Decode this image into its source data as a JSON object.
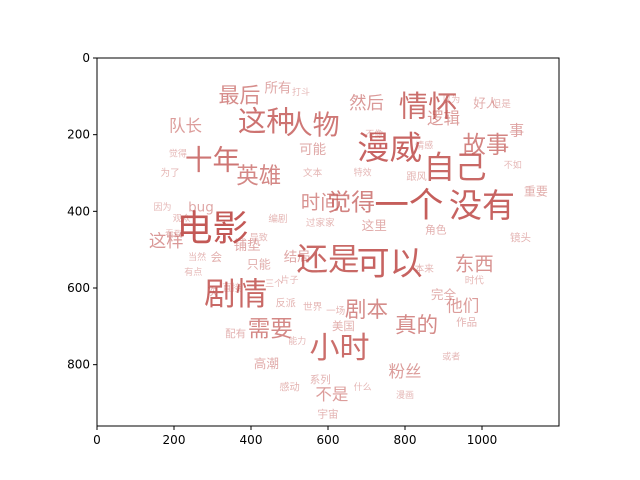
{
  "chart_data": {
    "type": "wordcloud",
    "title": "",
    "xlabel": "",
    "ylabel": "",
    "xlim": [
      0,
      1200
    ],
    "ylim": [
      960,
      0
    ],
    "x_ticks": [
      0,
      200,
      400,
      600,
      800,
      1000
    ],
    "y_ticks": [
      0,
      200,
      400,
      600,
      800
    ],
    "x_tick_labels": [
      "0",
      "200",
      "400",
      "600",
      "800",
      "1000"
    ],
    "y_tick_labels": [
      "0",
      "200",
      "400",
      "600",
      "800"
    ],
    "mask_shape": "heart",
    "word_color": "#c0504d",
    "words": [
      {
        "text": "电影",
        "x": 300,
        "y": 450,
        "weight": 1.0
      },
      {
        "text": "一个",
        "x": 810,
        "y": 390,
        "weight": 0.95
      },
      {
        "text": "没有",
        "x": 1000,
        "y": 390,
        "weight": 0.9
      },
      {
        "text": "可以",
        "x": 760,
        "y": 540,
        "weight": 0.9
      },
      {
        "text": "漫威",
        "x": 760,
        "y": 240,
        "weight": 0.88
      },
      {
        "text": "自己",
        "x": 930,
        "y": 290,
        "weight": 0.85
      },
      {
        "text": "还是",
        "x": 600,
        "y": 530,
        "weight": 0.85
      },
      {
        "text": "剧情",
        "x": 360,
        "y": 620,
        "weight": 0.85
      },
      {
        "text": "小时",
        "x": 630,
        "y": 760,
        "weight": 0.8
      },
      {
        "text": "情怀",
        "x": 860,
        "y": 130,
        "weight": 0.78
      },
      {
        "text": "这种",
        "x": 440,
        "y": 170,
        "weight": 0.75
      },
      {
        "text": "人物",
        "x": 560,
        "y": 180,
        "weight": 0.7
      },
      {
        "text": "十年",
        "x": 300,
        "y": 270,
        "weight": 0.72
      },
      {
        "text": "觉得",
        "x": 660,
        "y": 380,
        "weight": 0.6
      },
      {
        "text": "英雄",
        "x": 420,
        "y": 310,
        "weight": 0.55
      },
      {
        "text": "故事",
        "x": 1010,
        "y": 230,
        "weight": 0.58
      },
      {
        "text": "需要",
        "x": 450,
        "y": 710,
        "weight": 0.55
      },
      {
        "text": "最后",
        "x": 370,
        "y": 100,
        "weight": 0.5
      },
      {
        "text": "剧本",
        "x": 700,
        "y": 660,
        "weight": 0.52
      },
      {
        "text": "真的",
        "x": 830,
        "y": 700,
        "weight": 0.52
      },
      {
        "text": "时间",
        "x": 580,
        "y": 380,
        "weight": 0.45
      },
      {
        "text": "东西",
        "x": 980,
        "y": 540,
        "weight": 0.45
      },
      {
        "text": "队长",
        "x": 230,
        "y": 180,
        "weight": 0.35
      },
      {
        "text": "这样",
        "x": 180,
        "y": 480,
        "weight": 0.38
      },
      {
        "text": "然后",
        "x": 700,
        "y": 120,
        "weight": 0.38
      },
      {
        "text": "粉丝",
        "x": 800,
        "y": 820,
        "weight": 0.35
      },
      {
        "text": "逻辑",
        "x": 900,
        "y": 160,
        "weight": 0.35
      },
      {
        "text": "他们",
        "x": 950,
        "y": 650,
        "weight": 0.35
      },
      {
        "text": "不是",
        "x": 610,
        "y": 880,
        "weight": 0.35
      },
      {
        "text": "事",
        "x": 1090,
        "y": 190,
        "weight": 0.3
      },
      {
        "text": "所有",
        "x": 470,
        "y": 80,
        "weight": 0.25
      },
      {
        "text": "可能",
        "x": 560,
        "y": 240,
        "weight": 0.25
      },
      {
        "text": "好人",
        "x": 1010,
        "y": 120,
        "weight": 0.22
      },
      {
        "text": "bug",
        "x": 270,
        "y": 390,
        "weight": 0.25
      },
      {
        "text": "铺垫",
        "x": 390,
        "y": 490,
        "weight": 0.25
      },
      {
        "text": "只能",
        "x": 420,
        "y": 540,
        "weight": 0.2
      },
      {
        "text": "高潮",
        "x": 440,
        "y": 800,
        "weight": 0.22
      },
      {
        "text": "结局",
        "x": 520,
        "y": 520,
        "weight": 0.25
      },
      {
        "text": "完全",
        "x": 900,
        "y": 620,
        "weight": 0.22
      },
      {
        "text": "这里",
        "x": 720,
        "y": 440,
        "weight": 0.22
      },
      {
        "text": "美国",
        "x": 640,
        "y": 700,
        "weight": 0.18
      },
      {
        "text": "系列",
        "x": 580,
        "y": 840,
        "weight": 0.15
      },
      {
        "text": "宇宙",
        "x": 600,
        "y": 930,
        "weight": 0.15
      },
      {
        "text": "作品",
        "x": 960,
        "y": 690,
        "weight": 0.15
      },
      {
        "text": "配有",
        "x": 360,
        "y": 720,
        "weight": 0.15
      },
      {
        "text": "感动",
        "x": 500,
        "y": 860,
        "weight": 0.14
      },
      {
        "text": "角色",
        "x": 880,
        "y": 450,
        "weight": 0.16
      },
      {
        "text": "重要",
        "x": 1140,
        "y": 350,
        "weight": 0.2
      },
      {
        "text": "镜头",
        "x": 1100,
        "y": 470,
        "weight": 0.15
      },
      {
        "text": "文本",
        "x": 560,
        "y": 300,
        "weight": 0.12
      },
      {
        "text": "过家家",
        "x": 580,
        "y": 430,
        "weight": 0.12
      },
      {
        "text": "跟风",
        "x": 830,
        "y": 310,
        "weight": 0.14
      },
      {
        "text": "会",
        "x": 310,
        "y": 520,
        "weight": 0.18
      },
      {
        "text": "次",
        "x": 300,
        "y": 610,
        "weight": 0.15
      },
      {
        "text": "什么",
        "x": 690,
        "y": 860,
        "weight": 0.1
      },
      {
        "text": "导致",
        "x": 420,
        "y": 470,
        "weight": 0.1
      },
      {
        "text": "编剧",
        "x": 470,
        "y": 420,
        "weight": 0.12
      },
      {
        "text": "直接",
        "x": 350,
        "y": 600,
        "weight": 0.12
      },
      {
        "text": "世界",
        "x": 560,
        "y": 650,
        "weight": 0.12
      },
      {
        "text": "一场",
        "x": 620,
        "y": 660,
        "weight": 0.12
      },
      {
        "text": "或者",
        "x": 920,
        "y": 780,
        "weight": 0.1
      },
      {
        "text": "但是",
        "x": 1050,
        "y": 120,
        "weight": 0.12
      },
      {
        "text": "时代",
        "x": 980,
        "y": 580,
        "weight": 0.12
      },
      {
        "text": "情感",
        "x": 850,
        "y": 230,
        "weight": 0.1
      },
      {
        "text": "片子",
        "x": 500,
        "y": 580,
        "weight": 0.1
      },
      {
        "text": "不像",
        "x": 720,
        "y": 200,
        "weight": 0.1
      },
      {
        "text": "为了",
        "x": 190,
        "y": 300,
        "weight": 0.12
      },
      {
        "text": "因为",
        "x": 170,
        "y": 390,
        "weight": 0.1
      },
      {
        "text": "观众",
        "x": 220,
        "y": 420,
        "weight": 0.1
      },
      {
        "text": "看到",
        "x": 200,
        "y": 460,
        "weight": 0.1
      },
      {
        "text": "当然",
        "x": 260,
        "y": 520,
        "weight": 0.1
      },
      {
        "text": "有点",
        "x": 250,
        "y": 560,
        "weight": 0.1
      },
      {
        "text": "打斗",
        "x": 530,
        "y": 90,
        "weight": 0.1
      },
      {
        "text": "以为",
        "x": 920,
        "y": 110,
        "weight": 0.1
      },
      {
        "text": "特效",
        "x": 690,
        "y": 300,
        "weight": 0.1
      },
      {
        "text": "漫画",
        "x": 800,
        "y": 880,
        "weight": 0.1
      },
      {
        "text": "反派",
        "x": 490,
        "y": 640,
        "weight": 0.14
      },
      {
        "text": "本来",
        "x": 850,
        "y": 550,
        "weight": 0.12
      },
      {
        "text": "三个",
        "x": 460,
        "y": 590,
        "weight": 0.1
      },
      {
        "text": "觉得",
        "x": 210,
        "y": 250,
        "weight": 0.1
      },
      {
        "text": "能力",
        "x": 520,
        "y": 740,
        "weight": 0.1
      },
      {
        "text": "不如",
        "x": 1080,
        "y": 280,
        "weight": 0.1
      }
    ]
  }
}
